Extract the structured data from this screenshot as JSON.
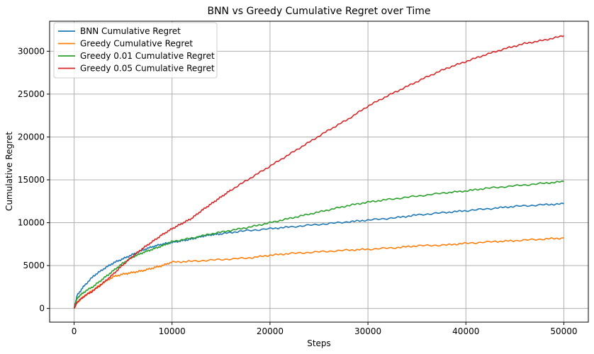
{
  "chart_data": {
    "type": "line",
    "title": "BNN vs Greedy Cumulative Regret over Time",
    "xlabel": "Steps",
    "ylabel": "Cumulative Regret",
    "xlim": [
      -2500,
      52500
    ],
    "ylim": [
      -1600,
      33500
    ],
    "xticks": [
      0,
      10000,
      20000,
      30000,
      40000,
      50000
    ],
    "yticks": [
      0,
      5000,
      10000,
      15000,
      20000,
      25000,
      30000
    ],
    "grid": true,
    "legend_position": "top-left",
    "series": [
      {
        "name": "BNN Cumulative Regret",
        "color": "#1f77b4",
        "x": [
          0,
          300,
          1000,
          2000,
          3000,
          4000,
          5000,
          6000,
          7000,
          8000,
          9000,
          10000,
          11000,
          12000,
          13000,
          14000,
          15000,
          17000,
          20000,
          22000,
          25000,
          28000,
          30000,
          33000,
          35000,
          38000,
          40000,
          43000,
          45000,
          48000,
          50000
        ],
        "y": [
          0,
          1500,
          2600,
          3800,
          4600,
          5300,
          5800,
          6300,
          6800,
          7200,
          7500,
          7700,
          7900,
          8100,
          8400,
          8600,
          8700,
          9000,
          9300,
          9500,
          9800,
          10100,
          10300,
          10600,
          10900,
          11200,
          11400,
          11700,
          11900,
          12100,
          12200
        ]
      },
      {
        "name": "Greedy Cumulative Regret",
        "color": "#ff7f0e",
        "x": [
          0,
          300,
          1000,
          2000,
          3000,
          4000,
          5000,
          6000,
          7000,
          8000,
          9000,
          10000,
          12000,
          15000,
          18000,
          20000,
          22000,
          25000,
          28000,
          30000,
          33000,
          35000,
          38000,
          40000,
          43000,
          45000,
          48000,
          50000
        ],
        "y": [
          0,
          700,
          1400,
          2200,
          3000,
          3700,
          4000,
          4200,
          4400,
          4700,
          5000,
          5400,
          5500,
          5700,
          5900,
          6200,
          6400,
          6600,
          6800,
          6900,
          7100,
          7300,
          7400,
          7600,
          7800,
          7900,
          8100,
          8200
        ]
      },
      {
        "name": "Greedy 0.01 Cumulative Regret",
        "color": "#2ca02c",
        "x": [
          0,
          300,
          1000,
          2000,
          3000,
          4000,
          5000,
          6000,
          7000,
          8000,
          9000,
          10000,
          12000,
          14000,
          16000,
          18000,
          20000,
          22000,
          24000,
          26000,
          28000,
          30000,
          32000,
          35000,
          38000,
          40000,
          42000,
          45000,
          48000,
          50000
        ],
        "y": [
          0,
          1200,
          1900,
          2600,
          3500,
          4400,
          5300,
          6000,
          6500,
          6900,
          7300,
          7800,
          8200,
          8700,
          9100,
          9500,
          10000,
          10500,
          11000,
          11500,
          12000,
          12400,
          12700,
          13100,
          13500,
          13700,
          14000,
          14300,
          14600,
          14800
        ]
      },
      {
        "name": "Greedy 0.05 Cumulative Regret",
        "color": "#d62728",
        "x": [
          0,
          300,
          1000,
          2000,
          3000,
          4000,
          5000,
          6000,
          7000,
          8000,
          9000,
          10000,
          11000,
          12000,
          13000,
          14000,
          15000,
          16000,
          18000,
          20000,
          22000,
          24000,
          26000,
          28000,
          30000,
          32000,
          34000,
          36000,
          38000,
          40000,
          42000,
          44000,
          46000,
          48000,
          50000
        ],
        "y": [
          0,
          700,
          1400,
          2100,
          3000,
          4000,
          5100,
          6100,
          7000,
          7800,
          8600,
          9300,
          9900,
          10500,
          11400,
          12200,
          13000,
          13800,
          15200,
          16600,
          18000,
          19400,
          20800,
          22100,
          23600,
          24800,
          25900,
          27000,
          28000,
          28800,
          29600,
          30300,
          30900,
          31300,
          31800
        ]
      }
    ]
  }
}
